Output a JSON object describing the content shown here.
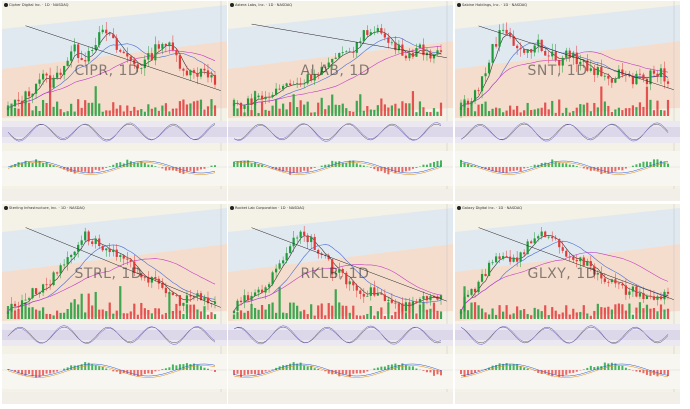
{
  "panels": [
    {
      "id": "cipr",
      "header": "Cipher Digital Inc. · 1D · NASDAQ",
      "watermark": "CIPR, 1D",
      "chips": [
        "",
        ""
      ],
      "legend": [
        "",
        "",
        "",
        ""
      ],
      "chart_data": {
        "type": "candlestick",
        "title": "CIPR, 1D",
        "trend": [
          5,
          6,
          7,
          9,
          8,
          10,
          12,
          11,
          13,
          14,
          12,
          11,
          10,
          11,
          13,
          12,
          10,
          9,
          10,
          8
        ],
        "shape": "rise-then-choppy-decline"
      }
    },
    {
      "id": "alab",
      "header": "Astera Labs, Inc. · 1D · NASDAQ",
      "watermark": "ALAB, 1D",
      "chips": [
        "",
        ""
      ],
      "legend": [
        "",
        "",
        "",
        ""
      ],
      "chart_data": {
        "type": "candlestick",
        "title": "ALAB, 1D",
        "trend": [
          4,
          4,
          5,
          5,
          6,
          7,
          7,
          8,
          9,
          10,
          11,
          12,
          14,
          15,
          13,
          12,
          11,
          12,
          11,
          11
        ],
        "shape": "steady-rise-then-pullback"
      }
    },
    {
      "id": "snt",
      "header": "Sabine Holdings, Inc. · 1D · NASDAQ",
      "watermark": "SNT, 1D",
      "chips": [
        "",
        ""
      ],
      "legend": [
        "",
        "",
        "",
        ""
      ],
      "chart_data": {
        "type": "candlestick",
        "title": "SNT, 1D",
        "trend": [
          6,
          7,
          9,
          13,
          15,
          13,
          12,
          13,
          12,
          11,
          12,
          11,
          10,
          10,
          9,
          10,
          9,
          9,
          10,
          9
        ],
        "shape": "spike-then-wedge"
      }
    },
    {
      "id": "strl",
      "header": "Sterling Infrastructure, Inc. · 1D · NASDAQ",
      "watermark": "STRL, 1D",
      "chips": [
        "",
        ""
      ],
      "legend": [
        "",
        "",
        "",
        ""
      ],
      "chart_data": {
        "type": "candlestick",
        "title": "STRL, 1D",
        "trend": [
          4,
          5,
          6,
          7,
          8,
          10,
          12,
          14,
          13,
          12,
          11,
          10,
          9,
          8,
          7,
          6,
          5,
          6,
          5,
          5
        ],
        "shape": "rise-then-decline"
      }
    },
    {
      "id": "rklb",
      "header": "Rocket Lab Corporation · 1D · NASDAQ",
      "watermark": "RKLB, 1D",
      "chips": [
        "",
        ""
      ],
      "legend": [
        "",
        "",
        "",
        ""
      ],
      "chart_data": {
        "type": "candlestick",
        "title": "RKLB, 1D",
        "trend": [
          5,
          6,
          7,
          8,
          10,
          13,
          15,
          14,
          12,
          10,
          9,
          8,
          7,
          7,
          6,
          5,
          5,
          6,
          6,
          6
        ],
        "shape": "peak-then-decline"
      }
    },
    {
      "id": "glxy",
      "header": "Galaxy Digital Inc. · 1D · NASDAQ",
      "watermark": "GLXY, 1D",
      "chips": [
        "",
        ""
      ],
      "legend": [
        "",
        "",
        "",
        ""
      ],
      "chart_data": {
        "type": "candlestick",
        "title": "GLXY, 1D",
        "trend": [
          5,
          7,
          9,
          11,
          12,
          11,
          13,
          14,
          15,
          13,
          12,
          11,
          10,
          9,
          8,
          7,
          7,
          6,
          6,
          7
        ],
        "shape": "rise-then-decline"
      }
    }
  ],
  "colors": {
    "up": "#1f9b3a",
    "down": "#e03a3a",
    "ma_short": "#333333",
    "ma_mid": "#4a6fd4",
    "ma_long": "#c23cc2",
    "band_fill": "#f5d9c8",
    "band_blue": "#dbe6f3",
    "panel_bg": "#f4f1e6"
  }
}
